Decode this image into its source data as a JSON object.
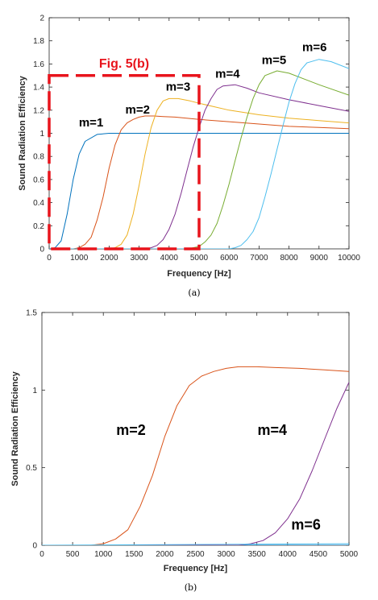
{
  "chart_data": [
    {
      "type": "line",
      "caption": "(a)",
      "xlabel": "Frequency [Hz]",
      "ylabel": "Sound Radiation Efficiency",
      "xlim": [
        0,
        10000
      ],
      "ylim": [
        0,
        2
      ],
      "xticks": [
        "0",
        "1000",
        "2000",
        "3000",
        "4000",
        "5000",
        "6000",
        "7000",
        "8000",
        "9000",
        "10000"
      ],
      "yticks": [
        "0",
        "0.2",
        "0.4",
        "0.6",
        "0.8",
        "1",
        "1.2",
        "1.4",
        "1.6",
        "1.8",
        "2"
      ],
      "grid": false,
      "series": [
        {
          "name": "m=1",
          "color": "#0072bd",
          "x": [
            0,
            200,
            400,
            600,
            800,
            1000,
            1200,
            1600,
            2000,
            3000,
            4000,
            5000,
            6000,
            7000,
            8000,
            9000,
            10000
          ],
          "y": [
            0,
            0.01,
            0.07,
            0.3,
            0.6,
            0.82,
            0.93,
            0.99,
            1.0,
            1.0,
            1.0,
            1.0,
            1.0,
            1.0,
            1.0,
            1.0,
            1.0
          ]
        },
        {
          "name": "m=2",
          "color": "#d95319",
          "x": [
            0,
            800,
            1000,
            1200,
            1400,
            1600,
            1800,
            2000,
            2200,
            2400,
            2600,
            2800,
            3000,
            3200,
            3500,
            3800,
            4200,
            5000,
            6000,
            7000,
            8000,
            9000,
            10000
          ],
          "y": [
            0,
            0.0,
            0.01,
            0.04,
            0.1,
            0.25,
            0.45,
            0.7,
            0.9,
            1.03,
            1.09,
            1.12,
            1.14,
            1.15,
            1.15,
            1.145,
            1.14,
            1.12,
            1.1,
            1.08,
            1.06,
            1.05,
            1.04
          ]
        },
        {
          "name": "m=3",
          "color": "#edb120",
          "x": [
            0,
            2000,
            2200,
            2400,
            2600,
            2800,
            3000,
            3200,
            3400,
            3600,
            3800,
            4000,
            4300,
            4700,
            5000,
            6000,
            7000,
            8000,
            9000,
            10000
          ],
          "y": [
            0,
            0.0,
            0.01,
            0.04,
            0.12,
            0.3,
            0.55,
            0.82,
            1.05,
            1.2,
            1.28,
            1.3,
            1.3,
            1.28,
            1.26,
            1.2,
            1.16,
            1.13,
            1.11,
            1.09
          ]
        },
        {
          "name": "m=4",
          "color": "#7e2f8e",
          "x": [
            0,
            3200,
            3400,
            3600,
            3800,
            4000,
            4200,
            4400,
            4600,
            4800,
            5000,
            5200,
            5400,
            5600,
            5800,
            6200,
            6600,
            7000,
            8000,
            9000,
            10000
          ],
          "y": [
            0,
            0.0,
            0.01,
            0.03,
            0.08,
            0.17,
            0.3,
            0.48,
            0.68,
            0.88,
            1.05,
            1.2,
            1.3,
            1.38,
            1.41,
            1.42,
            1.39,
            1.35,
            1.29,
            1.24,
            1.19
          ]
        },
        {
          "name": "m=5",
          "color": "#77ac30",
          "x": [
            0,
            4600,
            4800,
            5000,
            5200,
            5400,
            5600,
            5800,
            6000,
            6200,
            6400,
            6600,
            6800,
            7000,
            7200,
            7600,
            8000,
            9000,
            10000
          ],
          "y": [
            0,
            0.0,
            0.01,
            0.02,
            0.06,
            0.12,
            0.22,
            0.38,
            0.56,
            0.76,
            0.96,
            1.14,
            1.3,
            1.42,
            1.5,
            1.54,
            1.52,
            1.42,
            1.33
          ]
        },
        {
          "name": "m=6",
          "color": "#4dbeee",
          "x": [
            0,
            6000,
            6200,
            6400,
            6600,
            6800,
            7000,
            7200,
            7400,
            7600,
            7800,
            8000,
            8200,
            8400,
            8600,
            9000,
            9400,
            10000
          ],
          "y": [
            0,
            0.0,
            0.01,
            0.03,
            0.08,
            0.15,
            0.27,
            0.45,
            0.65,
            0.86,
            1.07,
            1.27,
            1.43,
            1.55,
            1.61,
            1.64,
            1.62,
            1.56
          ]
        }
      ],
      "annotations": [
        {
          "text": "m=1",
          "x": 1400,
          "y": 1.06
        },
        {
          "text": "m=2",
          "x": 2950,
          "y": 1.17
        },
        {
          "text": "m=3",
          "x": 4300,
          "y": 1.37
        },
        {
          "text": "m=4",
          "x": 5950,
          "y": 1.48
        },
        {
          "text": "m=5",
          "x": 7500,
          "y": 1.6
        },
        {
          "text": "m=6",
          "x": 8850,
          "y": 1.71
        }
      ],
      "highlight": {
        "label": "Fig. 5(b)",
        "x0": 0,
        "x1": 5000,
        "y0": 0,
        "y1": 1.5,
        "color": "#e8141c"
      }
    },
    {
      "type": "line",
      "caption": "(b)",
      "xlabel": "Frequency [Hz]",
      "ylabel": "Sound Radiation Efficiency",
      "xlim": [
        0,
        5000
      ],
      "ylim": [
        0,
        1.5
      ],
      "xticks": [
        "0",
        "500",
        "1000",
        "1500",
        "2000",
        "2500",
        "3000",
        "3500",
        "4000",
        "4500",
        "5000"
      ],
      "yticks": [
        "0",
        "0.5",
        "1",
        "1.5"
      ],
      "grid": false,
      "series": [
        {
          "name": "m=1",
          "color": "#0072bd",
          "x": [
            0,
            5000
          ],
          "y": [
            0,
            0
          ]
        },
        {
          "name": "m=2",
          "color": "#d95319",
          "x": [
            0,
            800,
            1000,
            1200,
            1400,
            1600,
            1800,
            2000,
            2200,
            2400,
            2600,
            2800,
            3000,
            3200,
            3500,
            3800,
            4200,
            4600,
            5000
          ],
          "y": [
            0,
            0.0,
            0.01,
            0.04,
            0.1,
            0.25,
            0.45,
            0.7,
            0.9,
            1.03,
            1.09,
            1.12,
            1.14,
            1.15,
            1.15,
            1.145,
            1.14,
            1.13,
            1.12
          ]
        },
        {
          "name": "m=4",
          "color": "#7e2f8e",
          "x": [
            0,
            2400,
            2800,
            3200,
            3400,
            3600,
            3800,
            4000,
            4200,
            4400,
            4600,
            4800,
            5000
          ],
          "y": [
            0,
            0.0,
            0.0,
            0.0,
            0.01,
            0.03,
            0.08,
            0.17,
            0.3,
            0.48,
            0.68,
            0.88,
            1.05
          ]
        },
        {
          "name": "m=6",
          "color": "#4dbeee",
          "x": [
            0,
            5000
          ],
          "y": [
            0,
            0.01
          ]
        }
      ],
      "annotations": [
        {
          "text": "m=2",
          "x": 1450,
          "y": 0.71
        },
        {
          "text": "m=4",
          "x": 3750,
          "y": 0.71
        },
        {
          "text": "m=6",
          "x": 4300,
          "y": 0.1
        }
      ]
    }
  ]
}
